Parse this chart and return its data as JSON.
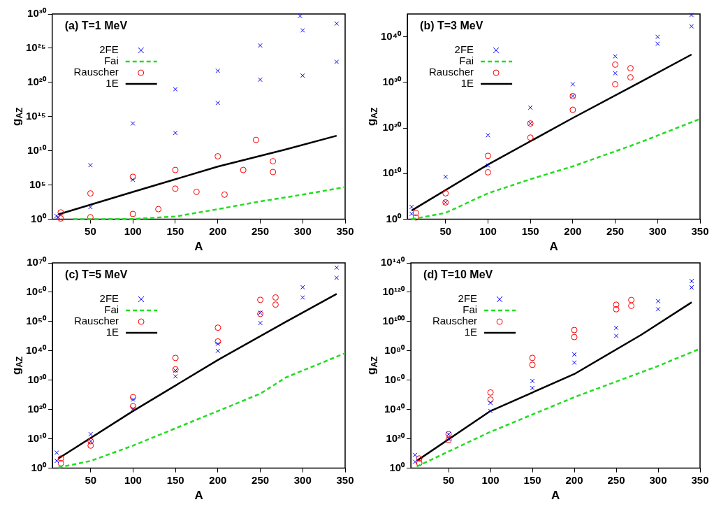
{
  "chart_data": [
    {
      "type": "scatter",
      "title": "(a) T=1 MeV",
      "xlabel": "A",
      "ylabel": "g$_{AZ}$",
      "log": "y",
      "legend": "top left",
      "xlim": [
        5,
        350
      ],
      "xticks": [
        50,
        100,
        150,
        200,
        250,
        300,
        350
      ],
      "ylim": [
        1,
        1e+30
      ],
      "yticks": [
        {
          "value": 1,
          "label": "10⁰"
        },
        {
          "value": 100000.0,
          "label": "10⁵"
        },
        {
          "value": 10000000000.0,
          "label": "10¹⁰"
        },
        {
          "value": 1000000000000000.0,
          "label": "10¹⁵"
        },
        {
          "value": 1e+20,
          "label": "10²⁰"
        },
        {
          "value": 1e+25,
          "label": "10²⁵"
        },
        {
          "value": 1e+30,
          "label": "10³⁰"
        }
      ],
      "series": [
        {
          "name": "2FE",
          "type": "scatter",
          "marker": "cross",
          "color": "#0000ff",
          "x": [
            10,
            50,
            100,
            150,
            200,
            250,
            297,
            300,
            340,
            340,
            300,
            250,
            200,
            150,
            100,
            50,
            12
          ],
          "values": [
            3,
            80000000.0,
            100000000000000.0,
            1e+19,
            5e+21,
            2.5e+25,
            5e+29,
            4e+27,
            4e+28,
            1e+23,
            1e+21,
            2.5e+20,
            1e+17,
            4000000000000.0,
            600000.0,
            60,
            2
          ]
        },
        {
          "name": "Fai",
          "type": "line",
          "marker": "none",
          "line_style": "dashed",
          "color": "#22dd22",
          "x": [
            30,
            100,
            150,
            200,
            250,
            300,
            350
          ],
          "values": [
            1,
            1.1,
            2.5,
            30,
            400,
            4000,
            50000.0
          ]
        },
        {
          "name": "Rauscher",
          "type": "scatter",
          "marker": "circle",
          "color": "#ff0000",
          "x": [
            15,
            50,
            100,
            150,
            200,
            245,
            265,
            265,
            230,
            208,
            175,
            150,
            130,
            100,
            50,
            15
          ],
          "values": [
            10,
            6000,
            1600000.0,
            16000000.0,
            1600000000.0,
            400000000000.0,
            300000000.0,
            8000000.0,
            16000000.0,
            4000,
            10000.0,
            30000.0,
            30,
            6,
            2,
            1.3
          ]
        },
        {
          "name": "1E",
          "type": "line",
          "marker": "none",
          "line_style": "solid",
          "color": "#000000",
          "x": [
            12,
            100,
            200,
            280,
            340
          ],
          "values": [
            5,
            10000.0,
            50000000.0,
            16000000000.0,
            1600000000000.0
          ]
        }
      ]
    },
    {
      "type": "scatter",
      "title": "(b) T=3 MeV",
      "xlabel": "A",
      "ylabel": "g$_{AZ}$",
      "log": "y",
      "legend": "top left",
      "xlim": [
        5,
        350
      ],
      "xticks": [
        50,
        100,
        150,
        200,
        250,
        300,
        350
      ],
      "ylim": [
        1,
        1e+45
      ],
      "yticks": [
        {
          "value": 1,
          "label": "10⁰"
        },
        {
          "value": 10000000000.0,
          "label": "10¹⁰"
        },
        {
          "value": 1e+20,
          "label": "10²⁰"
        },
        {
          "value": 1e+30,
          "label": "10³⁰"
        },
        {
          "value": 1e+40,
          "label": "10⁴⁰"
        }
      ],
      "series": [
        {
          "name": "2FE",
          "type": "scatter",
          "marker": "cross",
          "color": "#0000ff",
          "x": [
            10,
            50,
            100,
            150,
            200,
            250,
            300,
            340,
            340,
            300,
            250,
            200,
            150,
            100,
            50,
            10
          ],
          "values": [
            500,
            2000000000.0,
            2.5e+18,
            3e+24,
            4e+29,
            5e+35,
            1e+40,
            6e+44,
            2e+42,
            3e+38,
            1e+32,
            1e+27,
            1e+21,
            600000000000.0,
            5000,
            16
          ]
        },
        {
          "name": "Fai",
          "type": "line",
          "marker": "none",
          "line_style": "dashed",
          "color": "#22dd22",
          "x": [
            10,
            50,
            100,
            150,
            200,
            250,
            280,
            350
          ],
          "values": [
            1,
            25,
            500000.0,
            600000000.0,
            400000000000.0,
            800000000000000.0,
            8e+16,
            1e+22
          ]
        },
        {
          "name": "Rauscher",
          "type": "scatter",
          "marker": "circle",
          "color": "#ff0000",
          "x": [
            15,
            50,
            100,
            150,
            200,
            250,
            268,
            268,
            250,
            200,
            150,
            100,
            50,
            15
          ],
          "values": [
            25,
            500000.0,
            80000000000000.0,
            1e+21,
            1e+27,
            8e+33,
            1.3e+33,
            1.3e+31,
            4e+29,
            1e+24,
            8e+17,
            20000000000.0,
            5000,
            2.5
          ]
        },
        {
          "name": "1E",
          "type": "line",
          "marker": "none",
          "line_style": "solid",
          "color": "#000000",
          "x": [
            10,
            100,
            200,
            280,
            340
          ],
          "values": [
            80,
            1000000000000.0,
            1.6e+22,
            1.3e+30,
            1.3e+36
          ]
        }
      ]
    },
    {
      "type": "scatter",
      "title": "(c) T=5 MeV",
      "xlabel": "A",
      "ylabel": "g$_{AZ}$",
      "log": "y",
      "legend": "top left",
      "xlim": [
        5,
        350
      ],
      "xticks": [
        50,
        100,
        150,
        200,
        250,
        300,
        350
      ],
      "ylim": [
        1,
        1e+70
      ],
      "yticks": [
        {
          "value": 1,
          "label": "10⁰"
        },
        {
          "value": 10000000000.0,
          "label": "10¹⁰"
        },
        {
          "value": 1e+20,
          "label": "10²⁰"
        },
        {
          "value": 1e+30,
          "label": "10³⁰"
        },
        {
          "value": 1e+40,
          "label": "10⁴⁰"
        },
        {
          "value": 1e+50,
          "label": "10⁵⁰"
        },
        {
          "value": 1e+60,
          "label": "10⁶⁰"
        },
        {
          "value": 1e+70,
          "label": "10⁷⁰"
        }
      ],
      "series": [
        {
          "name": "2FE",
          "type": "scatter",
          "marker": "cross",
          "color": "#0000ff",
          "x": [
            10,
            50,
            100,
            150,
            200,
            250,
            300,
            340,
            340,
            300,
            250,
            200,
            150,
            100,
            50,
            10
          ],
          "values": [
            200000.0,
            400000000000.0,
            2.5e+23,
            2e+33,
            2.5e+42,
            1e+53,
            5e+61,
            2.5e+68,
            8e+64,
            1.6e+58,
            3e+49,
            1e+40,
            2e+31,
            2e+20,
            1600000000.0,
            300
          ]
        },
        {
          "name": "Fai",
          "type": "line",
          "marker": "none",
          "line_style": "dashed",
          "color": "#22dd22",
          "x": [
            12,
            50,
            100,
            150,
            200,
            250,
            280,
            350
          ],
          "values": [
            1.6,
            300,
            50000000.0,
            40000000000000.0,
            3e+19,
            2.5e+25,
            8e+30,
            1.6e+39
          ]
        },
        {
          "name": "Rauscher",
          "type": "scatter",
          "marker": "circle",
          "color": "#ff0000",
          "x": [
            15,
            50,
            100,
            150,
            200,
            250,
            268,
            268,
            250,
            200,
            150,
            100,
            50,
            15
          ],
          "values": [
            2000,
            1600000000.0,
            1.6e+24,
            4e+37,
            8e+47,
            2.5e+57,
            1.6e+58,
            6e+55,
            4e+52,
            1.6e+43,
            5e+33,
            1.3e+21,
            50000000.0,
            50
          ]
        },
        {
          "name": "1E",
          "type": "line",
          "marker": "none",
          "line_style": "solid",
          "color": "#000000",
          "x": [
            12,
            100,
            200,
            280,
            340
          ],
          "values": [
            2000,
            3e+19,
            8e+36,
            8e+49,
            2.5e+59
          ]
        }
      ]
    },
    {
      "type": "scatter",
      "title": "(d) T=10 MeV",
      "xlabel": "A",
      "ylabel": "g$_{AZ}$",
      "log": "y",
      "legend": "top left",
      "xlim": [
        5,
        350
      ],
      "xticks": [
        50,
        100,
        150,
        200,
        250,
        300,
        350
      ],
      "ylim": [
        1,
        1e+140
      ],
      "yticks": [
        {
          "value": 1,
          "label": "10⁰"
        },
        {
          "value": 1e+20,
          "label": "10²⁰"
        },
        {
          "value": 1e+40,
          "label": "10⁴⁰"
        },
        {
          "value": 1e+60,
          "label": "10⁶⁰"
        },
        {
          "value": 1e+80,
          "label": "10⁸⁰"
        },
        {
          "value": 1e+100,
          "label": "10¹⁰⁰"
        },
        {
          "value": 1e+120,
          "label": "10¹²⁰"
        },
        {
          "value": 1e+140,
          "label": "10¹⁴⁰"
        }
      ],
      "series": [
        {
          "name": "2FE",
          "type": "scatter",
          "marker": "cross",
          "color": "#0000ff",
          "x": [
            10,
            50,
            100,
            150,
            200,
            250,
            300,
            340,
            340,
            300,
            250,
            200,
            150,
            100,
            50,
            10
          ],
          "values": [
            1000000000.0,
            1.6e+23,
            3e+44,
            3e+59,
            4e+77,
            5e+95,
            8e+113,
            4e+127,
            2e+123,
            2.5e+108,
            1.6e+90,
            1e+72,
            5e+54,
            1e+39,
            1e+20,
            20000.0
          ]
        },
        {
          "name": "Fai",
          "type": "line",
          "marker": "none",
          "line_style": "dashed",
          "color": "#22dd22",
          "x": [
            12,
            100,
            200,
            300,
            350
          ],
          "values": [
            13,
            6e+24,
            2.5e+48,
            5e+69,
            3e+81
          ]
        },
        {
          "name": "Rauscher",
          "type": "scatter",
          "marker": "circle",
          "color": "#ff0000",
          "x": [
            15,
            50,
            100,
            150,
            200,
            250,
            268,
            268,
            250,
            200,
            150,
            100,
            50,
            15
          ],
          "values": [
            4000000.0,
            1.6e+23,
            4e+51,
            1.6e+75,
            1.6e+94,
            3e+111,
            5e+114,
            5e+110,
            2.5e+108,
            2.5e+89,
            3e+70,
            6e+46,
            1.6e+19,
            3000
          ]
        },
        {
          "name": "1E",
          "type": "line",
          "marker": "none",
          "line_style": "solid",
          "color": "#000000",
          "x": [
            12,
            100,
            200,
            280,
            340
          ],
          "values": [
            100000.0,
            1e+39,
            1.6e+64,
            1e+91,
            1.3e+113
          ]
        }
      ]
    }
  ]
}
